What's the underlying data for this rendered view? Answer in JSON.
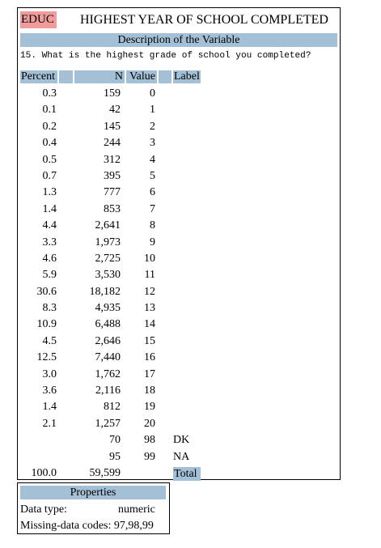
{
  "variable": {
    "name": "EDUC",
    "title": "HIGHEST YEAR OF SCHOOL COMPLETED",
    "description_header": "Description of the Variable",
    "question": "15. What is the highest grade of school you completed?"
  },
  "table": {
    "headers": {
      "percent": "Percent",
      "n": "N",
      "value": "Value",
      "label": "Label"
    },
    "rows": [
      {
        "percent": "0.3",
        "n": "159",
        "value": "0",
        "label": ""
      },
      {
        "percent": "0.1",
        "n": "42",
        "value": "1",
        "label": ""
      },
      {
        "percent": "0.2",
        "n": "145",
        "value": "2",
        "label": ""
      },
      {
        "percent": "0.4",
        "n": "244",
        "value": "3",
        "label": ""
      },
      {
        "percent": "0.5",
        "n": "312",
        "value": "4",
        "label": ""
      },
      {
        "percent": "0.7",
        "n": "395",
        "value": "5",
        "label": ""
      },
      {
        "percent": "1.3",
        "n": "777",
        "value": "6",
        "label": ""
      },
      {
        "percent": "1.4",
        "n": "853",
        "value": "7",
        "label": ""
      },
      {
        "percent": "4.4",
        "n": "2,641",
        "value": "8",
        "label": ""
      },
      {
        "percent": "3.3",
        "n": "1,973",
        "value": "9",
        "label": ""
      },
      {
        "percent": "4.6",
        "n": "2,725",
        "value": "10",
        "label": ""
      },
      {
        "percent": "5.9",
        "n": "3,530",
        "value": "11",
        "label": ""
      },
      {
        "percent": "30.6",
        "n": "18,182",
        "value": "12",
        "label": ""
      },
      {
        "percent": "8.3",
        "n": "4,935",
        "value": "13",
        "label": ""
      },
      {
        "percent": "10.9",
        "n": "6,488",
        "value": "14",
        "label": ""
      },
      {
        "percent": "4.5",
        "n": "2,646",
        "value": "15",
        "label": ""
      },
      {
        "percent": "12.5",
        "n": "7,440",
        "value": "16",
        "label": ""
      },
      {
        "percent": "3.0",
        "n": "1,762",
        "value": "17",
        "label": ""
      },
      {
        "percent": "3.6",
        "n": "2,116",
        "value": "18",
        "label": ""
      },
      {
        "percent": "1.4",
        "n": "812",
        "value": "19",
        "label": ""
      },
      {
        "percent": "2.1",
        "n": "1,257",
        "value": "20",
        "label": ""
      },
      {
        "percent": "",
        "n": "70",
        "value": "98",
        "label": "DK"
      },
      {
        "percent": "",
        "n": "95",
        "value": "99",
        "label": "NA"
      },
      {
        "percent": "100.0",
        "n": "59,599",
        "value": "",
        "label": "Total"
      }
    ]
  },
  "properties": {
    "header": "Properties",
    "data_type_label": "Data type:",
    "data_type_value": "numeric",
    "missing_codes_label": "Missing-data codes:",
    "missing_codes_value": "97,98,99"
  },
  "colors": {
    "variable_name_bg": "#f29b9b",
    "header_bg": "#a3c0d6"
  }
}
